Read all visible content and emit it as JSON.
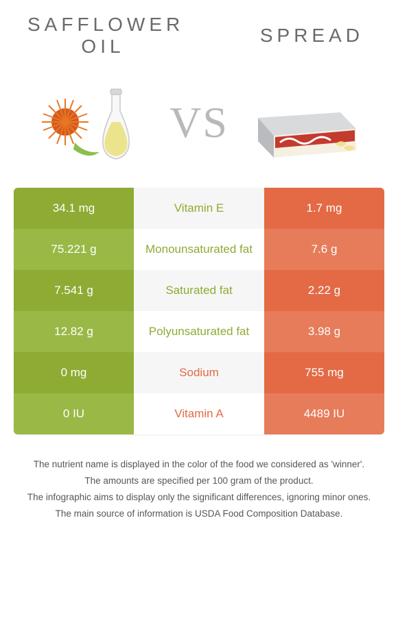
{
  "colors": {
    "left_bg_dark": "#8eab33",
    "left_bg_light": "#9ab846",
    "mid_bg_dark": "#f6f6f6",
    "mid_bg_light": "#ffffff",
    "right_bg_dark": "#e36a45",
    "right_bg_light": "#e77c5a",
    "winner_left": "#8eab33",
    "winner_right": "#e36a45",
    "title_grey": "#6a6a6a",
    "vs_grey": "#b9b9b9"
  },
  "titles": {
    "left_line1": "SAFFLOWER",
    "left_line2": "OIL",
    "right": "SPREAD",
    "vs": "VS"
  },
  "rows": [
    {
      "left": "34.1 mg",
      "label": "Vitamin E",
      "right": "1.7 mg",
      "winner": "left"
    },
    {
      "left": "75.221 g",
      "label": "Monounsaturated fat",
      "right": "7.6 g",
      "winner": "left"
    },
    {
      "left": "7.541 g",
      "label": "Saturated fat",
      "right": "2.22 g",
      "winner": "left"
    },
    {
      "left": "12.82 g",
      "label": "Polyunsaturated fat",
      "right": "3.98 g",
      "winner": "left"
    },
    {
      "left": "0 mg",
      "label": "Sodium",
      "right": "755 mg",
      "winner": "right"
    },
    {
      "left": "0 IU",
      "label": "Vitamin A",
      "right": "4489 IU",
      "winner": "right"
    }
  ],
  "footnotes": [
    "The nutrient name is displayed in the color of the food we considered as 'winner'.",
    "The amounts are specified per 100 gram of the product.",
    "The infographic aims to display only the significant differences, ignoring minor ones.",
    "The main source of information is USDA Food Composition Database."
  ]
}
